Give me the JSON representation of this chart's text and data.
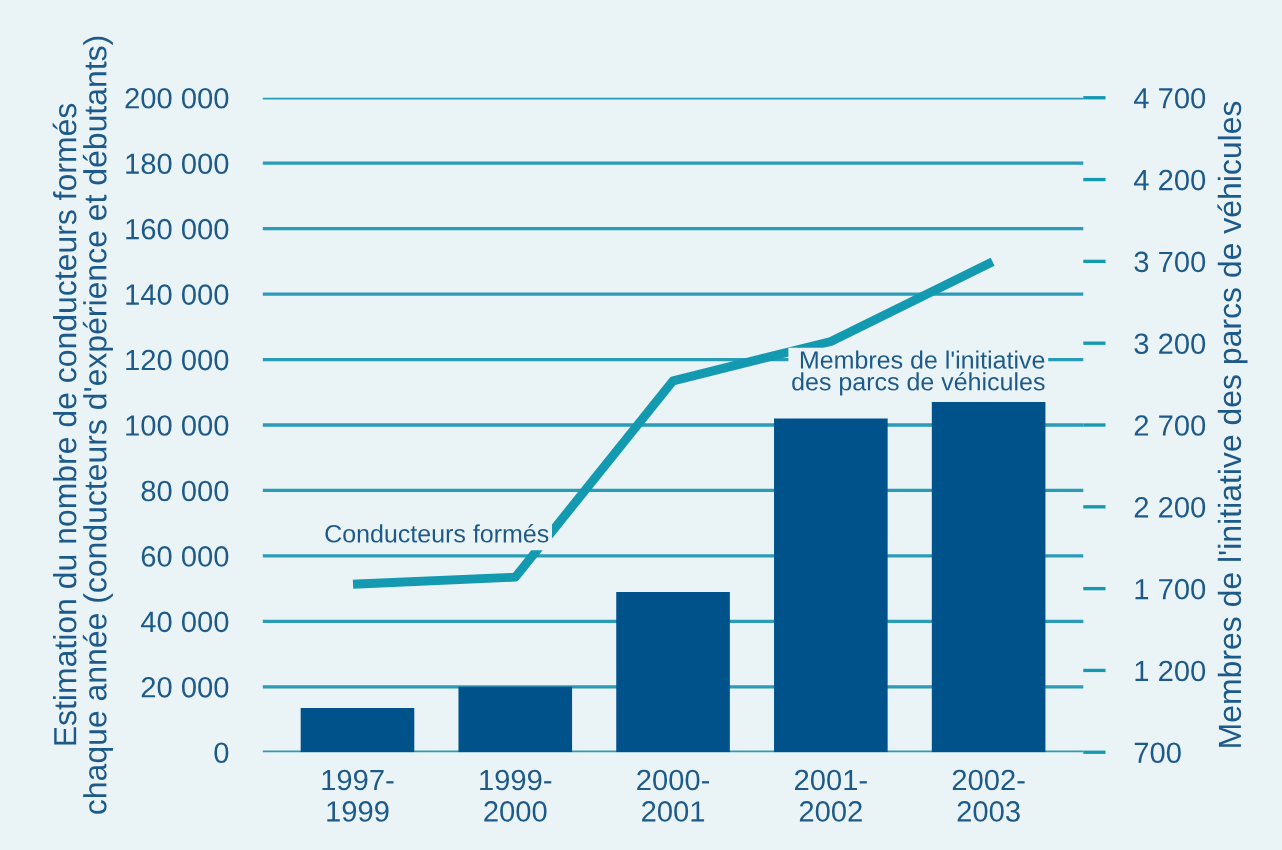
{
  "chart_data": {
    "type": "bar",
    "categories": [
      "1997-\n1999",
      "1999-\n2000",
      "2000-\n2001",
      "2001-\n2002",
      "2002-\n2003"
    ],
    "ylabel": "Estimation du nombre de conducteurs formés\nchaque année (conducteurs d'expérience et débutants)",
    "y2label": "Membres de l'initiative des parcs de véhicules",
    "series": [
      {
        "name": "Membres de l'initiative\ndes parcs de véhicules",
        "axis": "y2",
        "color": "#00528a",
        "values": [
          970,
          1100,
          1680,
          2740,
          2840
        ]
      },
      {
        "name": "Conducteurs formés",
        "type": "line",
        "color": "#1399b0",
        "values": [
          51400,
          53500,
          113500,
          125500,
          149300
        ]
      }
    ],
    "ylim": [
      0,
      200000
    ],
    "yticks": [
      {
        "value": 0,
        "label": "0"
      },
      {
        "value": 20000,
        "label": "20 000"
      },
      {
        "value": 40000,
        "label": "40 000"
      },
      {
        "value": 60000,
        "label": "60 000"
      },
      {
        "value": 80000,
        "label": "80 000"
      },
      {
        "value": 100000,
        "label": "100 000"
      },
      {
        "value": 120000,
        "label": "120 000"
      },
      {
        "value": 140000,
        "label": "140 000"
      },
      {
        "value": 160000,
        "label": "160 000"
      },
      {
        "value": 180000,
        "label": "180 000"
      },
      {
        "value": 200000,
        "label": "200 000"
      }
    ],
    "y2lim": [
      700,
      4700
    ],
    "y2ticks": [
      700,
      {
        "value": 1200,
        "label": "1 200"
      },
      {
        "value": 1700,
        "label": "1 700"
      },
      {
        "value": 2200,
        "label": "2 200"
      },
      {
        "value": 2700,
        "label": "2 700"
      },
      {
        "value": 3200,
        "label": "3 200"
      },
      {
        "value": 3700,
        "label": "3 700"
      },
      {
        "value": 4200,
        "label": "4 200"
      },
      {
        "value": 4700,
        "label": "4 700"
      }
    ],
    "grid": "y",
    "legend": false
  }
}
